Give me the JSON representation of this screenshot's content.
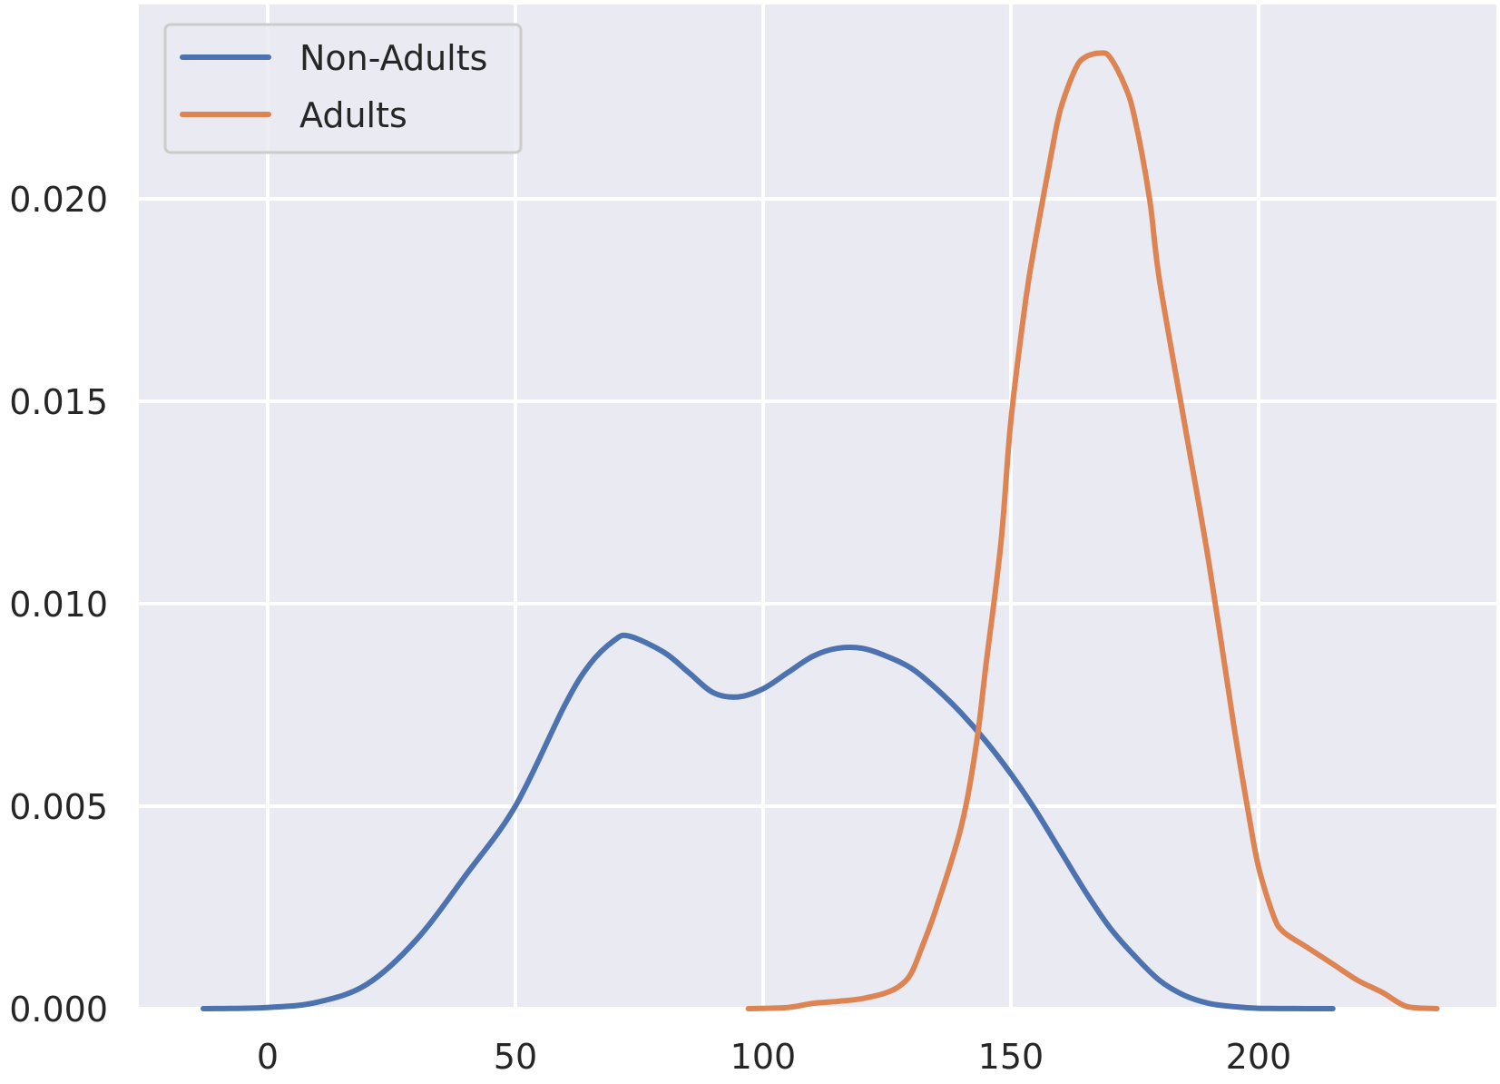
{
  "chart_data": {
    "type": "line",
    "title": "",
    "xlabel": "",
    "ylabel": "",
    "xlim": [
      -26,
      248
    ],
    "ylim": [
      0,
      0.0248
    ],
    "xticks": [
      0,
      50,
      100,
      150,
      200
    ],
    "xtick_labels": [
      "0",
      "50",
      "100",
      "150",
      "200"
    ],
    "yticks": [
      0.0,
      0.005,
      0.01,
      0.015,
      0.02
    ],
    "ytick_labels": [
      "0.000",
      "0.005",
      "0.010",
      "0.015",
      "0.020"
    ],
    "grid": true,
    "legend": {
      "position": "top-left"
    },
    "background": "#eaeaf2",
    "series": [
      {
        "name": "Non-Adults",
        "color": "#4c72b0",
        "x": [
          -13,
          0,
          10,
          20,
          30,
          40,
          50,
          60,
          65,
          70,
          73,
          80,
          85,
          90,
          95,
          100,
          105,
          110,
          115,
          120,
          125,
          130,
          135,
          140,
          145,
          150,
          155,
          160,
          165,
          170,
          175,
          180,
          185,
          190,
          195,
          200,
          210,
          215
        ],
        "y": [
          0.0,
          3e-05,
          0.00016,
          0.0006,
          0.0017,
          0.0033,
          0.005,
          0.0075,
          0.0085,
          0.0091,
          0.0092,
          0.0088,
          0.0083,
          0.0078,
          0.0077,
          0.0079,
          0.0083,
          0.0087,
          0.0089,
          0.0089,
          0.0087,
          0.0084,
          0.0079,
          0.0073,
          0.0066,
          0.0058,
          0.0049,
          0.0039,
          0.0029,
          0.002,
          0.0013,
          0.0007,
          0.00033,
          0.00013,
          5e-05,
          1e-05,
          0.0,
          0.0
        ]
      },
      {
        "name": "Adults",
        "color": "#dd8452",
        "x": [
          97,
          105,
          110,
          115,
          120,
          125,
          128,
          130,
          132,
          135,
          140,
          143,
          145,
          148,
          150,
          153,
          155,
          158,
          160,
          163,
          165,
          168,
          170,
          173,
          175,
          178,
          180,
          185,
          190,
          195,
          198,
          200,
          203,
          205,
          210,
          215,
          220,
          225,
          230,
          236
        ],
        "y": [
          0.0,
          3e-05,
          0.00013,
          0.00018,
          0.00025,
          0.0004,
          0.0006,
          0.0009,
          0.0015,
          0.0025,
          0.0045,
          0.0065,
          0.0085,
          0.0115,
          0.0145,
          0.0175,
          0.019,
          0.021,
          0.0222,
          0.0232,
          0.0235,
          0.0236,
          0.0235,
          0.0228,
          0.022,
          0.02,
          0.018,
          0.0145,
          0.011,
          0.007,
          0.0048,
          0.0035,
          0.0023,
          0.0019,
          0.0015,
          0.0011,
          0.0007,
          0.0004,
          5e-05,
          0.0
        ]
      }
    ]
  }
}
